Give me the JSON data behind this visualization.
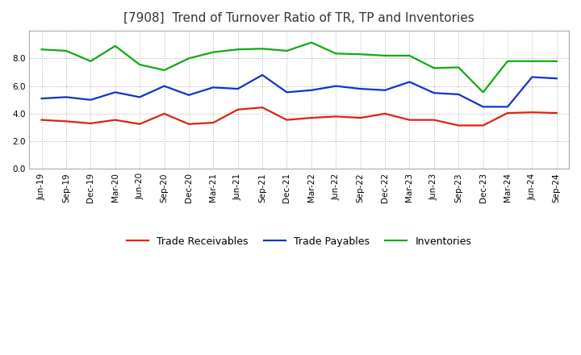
{
  "title": "[7908]  Trend of Turnover Ratio of TR, TP and Inventories",
  "x_labels": [
    "Jun-19",
    "Sep-19",
    "Dec-19",
    "Mar-20",
    "Jun-20",
    "Sep-20",
    "Dec-20",
    "Mar-21",
    "Jun-21",
    "Sep-21",
    "Dec-21",
    "Mar-22",
    "Jun-22",
    "Sep-22",
    "Dec-22",
    "Mar-23",
    "Jun-23",
    "Sep-23",
    "Dec-23",
    "Mar-24",
    "Jun-24",
    "Sep-24"
  ],
  "trade_receivables": [
    3.55,
    3.45,
    3.3,
    3.55,
    3.25,
    4.0,
    3.25,
    3.35,
    4.3,
    4.45,
    3.55,
    3.7,
    3.8,
    3.7,
    4.0,
    3.55,
    3.55,
    3.15,
    3.15,
    4.05,
    4.1,
    4.05
  ],
  "trade_payables": [
    5.1,
    5.2,
    5.0,
    5.55,
    5.2,
    6.0,
    5.35,
    5.9,
    5.8,
    6.8,
    5.55,
    5.7,
    6.0,
    5.8,
    5.7,
    6.3,
    5.5,
    5.4,
    4.5,
    4.5,
    6.65,
    6.55
  ],
  "inventories": [
    8.65,
    8.55,
    7.8,
    8.9,
    7.55,
    7.15,
    8.0,
    8.45,
    8.65,
    8.7,
    8.55,
    9.15,
    8.35,
    8.3,
    8.2,
    8.2,
    7.3,
    7.35,
    5.55,
    7.8,
    7.8,
    7.8
  ],
  "ylim": [
    0.0,
    10.0
  ],
  "yticks": [
    0.0,
    2.0,
    4.0,
    6.0,
    8.0
  ],
  "color_tr": "#dd2211",
  "color_tp": "#1133cc",
  "color_inv": "#11aa11",
  "legend_labels": [
    "Trade Receivables",
    "Trade Payables",
    "Inventories"
  ],
  "line_width": 1.6,
  "bg_color": "#ffffff",
  "plot_bg_color": "#ffffff",
  "grid_color": "#aaaaaa",
  "title_fontsize": 11,
  "tick_fontsize": 7.5,
  "legend_fontsize": 9
}
